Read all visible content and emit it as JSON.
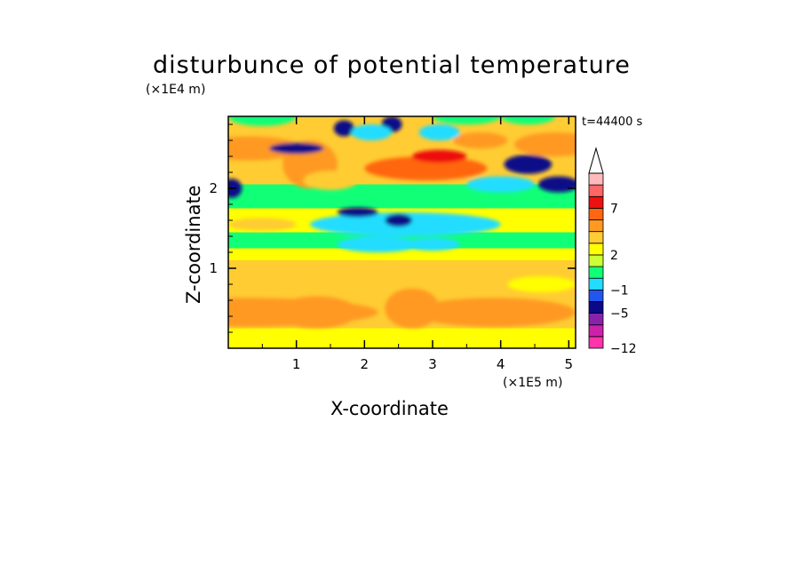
{
  "chart_data": {
    "type": "heatmap",
    "title": "disturbunce of potential temperature",
    "xlabel": "X-coordinate",
    "ylabel": "Z-coordinate",
    "x_unit": "(×1E5 m)",
    "y_unit": "(×1E4 m)",
    "time_label": "t=44400 s",
    "xlim": [
      0,
      5.1
    ],
    "ylim": [
      0,
      2.9
    ],
    "x_ticks": [
      1,
      2,
      3,
      4,
      5
    ],
    "y_ticks": [
      1,
      2
    ],
    "colorbar": {
      "labeled_values": [
        7,
        2,
        -1,
        -5,
        -12
      ],
      "levels": [
        {
          "color": "#ff33aa"
        },
        {
          "color": "#cc22aa"
        },
        {
          "color": "#8822aa"
        },
        {
          "color": "#0a0a88"
        },
        {
          "color": "#2255ee"
        },
        {
          "color": "#22ddff"
        },
        {
          "color": "#11ff77"
        },
        {
          "color": "#ccff33"
        },
        {
          "color": "#ffff00"
        },
        {
          "color": "#ffcc33"
        },
        {
          "color": "#ff9922"
        },
        {
          "color": "#ff6611"
        },
        {
          "color": "#ee1111"
        },
        {
          "color": "#ff6666"
        },
        {
          "color": "#ffbbbb"
        }
      ],
      "extend_max": true
    }
  }
}
